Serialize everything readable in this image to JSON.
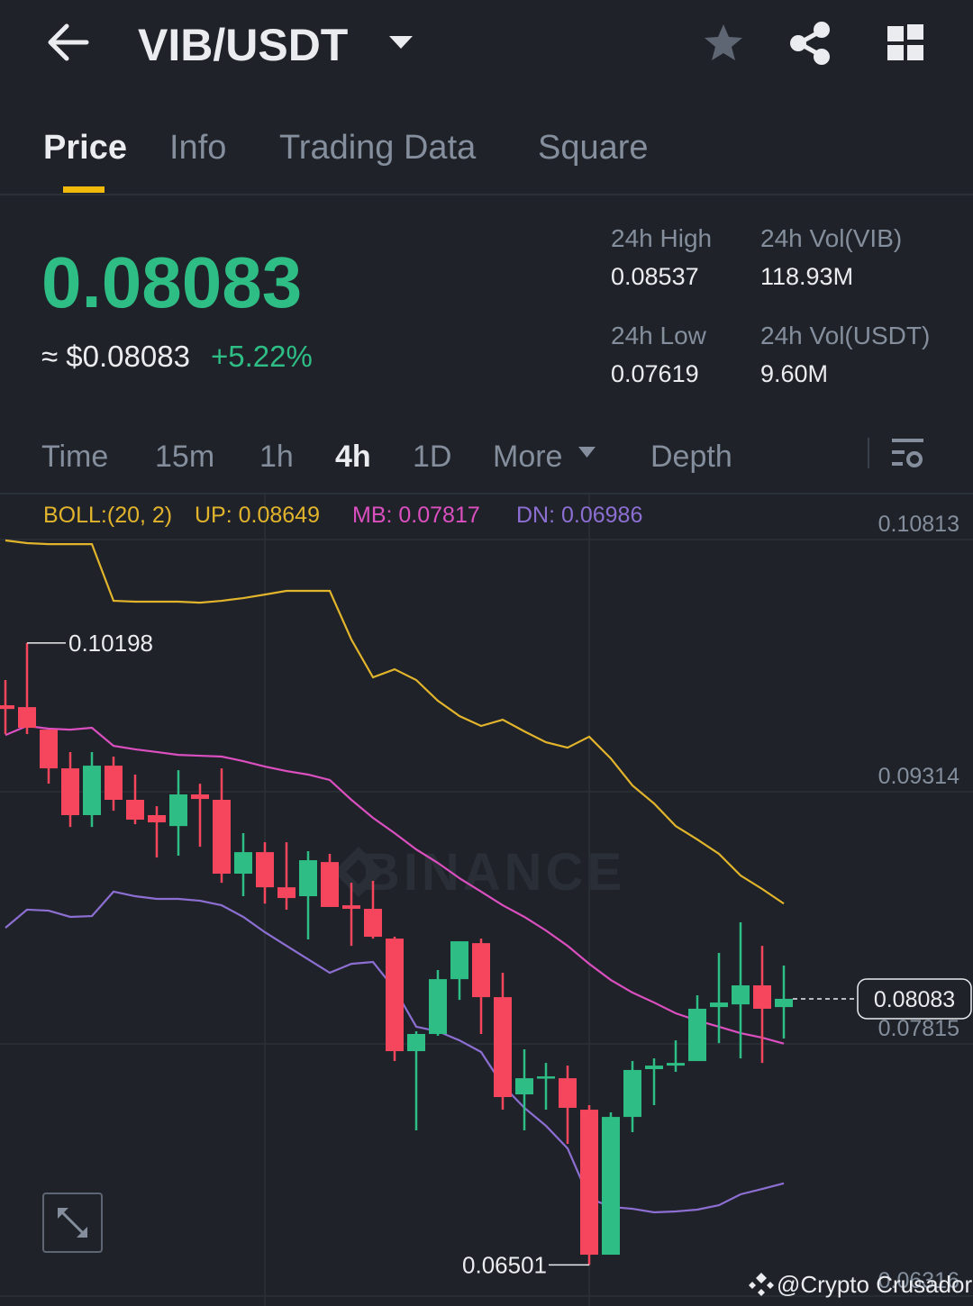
{
  "header": {
    "pair": "VIB/USDT"
  },
  "tabs": [
    "Price",
    "Info",
    "Trading Data",
    "Square"
  ],
  "active_tab": 0,
  "ticker": {
    "last_price": "0.08083",
    "approx": "≈ $0.08083",
    "change": "+5.22%",
    "stats": [
      {
        "label": "24h High",
        "value": "0.08537"
      },
      {
        "label": "24h Vol(VIB)",
        "value": "118.93M"
      },
      {
        "label": "24h Low",
        "value": "0.07619"
      },
      {
        "label": "24h Vol(USDT)",
        "value": "9.60M"
      }
    ]
  },
  "intervals": [
    "Time",
    "15m",
    "1h",
    "4h",
    "1D",
    "More",
    "Depth"
  ],
  "active_interval": 3,
  "chart_data": {
    "type": "candlestick",
    "indicator": "BOLL:(20, 2)",
    "indicator_color": "#e2b42c",
    "up_color": "#2ebd85",
    "down_color": "#f6465d",
    "open": [
      0.09828,
      0.09817,
      0.09683,
      0.09453,
      0.09175,
      0.09469,
      0.09266,
      0.09175,
      0.0911,
      0.09298,
      0.09266,
      0.08827,
      0.08955,
      0.08746,
      0.08693,
      0.08896,
      0.08639,
      0.08618,
      0.08441,
      0.07772,
      0.07874,
      0.082,
      0.08414,
      0.08093,
      0.07515,
      0.07611,
      0.07611,
      0.07424,
      0.06562,
      0.07381,
      0.07665,
      0.07686,
      0.07713,
      0.08034,
      0.0805,
      0.08163,
      0.08034
    ],
    "high": [
      0.09978,
      0.10198,
      0.09683,
      0.0955,
      0.0955,
      0.09523,
      0.09416,
      0.09228,
      0.09442,
      0.09362,
      0.09453,
      0.09068,
      0.09014,
      0.09014,
      0.08961,
      0.08945,
      0.08773,
      0.08784,
      0.08452,
      0.0789,
      0.08254,
      0.08425,
      0.08441,
      0.08238,
      0.07783,
      0.07702,
      0.07686,
      0.07451,
      0.07408,
      0.07713,
      0.07729,
      0.07836,
      0.08104,
      0.08356,
      0.08538,
      0.08398,
      0.08281
    ],
    "low": [
      0.09657,
      0.09657,
      0.09362,
      0.09105,
      0.09105,
      0.09201,
      0.09121,
      0.08923,
      0.08934,
      0.08987,
      0.08773,
      0.08693,
      0.08649,
      0.08613,
      0.08436,
      0.08629,
      0.08398,
      0.08441,
      0.07713,
      0.07301,
      0.07863,
      0.08077,
      0.07874,
      0.07424,
      0.07301,
      0.07424,
      0.07221,
      0.06501,
      0.06562,
      0.0729,
      0.07451,
      0.07649,
      0.07713,
      0.0782,
      0.07729,
      0.07702,
      0.07847
    ],
    "close": [
      0.09806,
      0.09694,
      0.09453,
      0.09175,
      0.09469,
      0.09266,
      0.09148,
      0.09132,
      0.09298,
      0.09271,
      0.08827,
      0.08955,
      0.08746,
      0.08682,
      0.08907,
      0.08629,
      0.08618,
      0.08452,
      0.07772,
      0.07874,
      0.082,
      0.08425,
      0.08093,
      0.07499,
      0.07611,
      0.07622,
      0.07435,
      0.06562,
      0.07381,
      0.0766,
      0.07686,
      0.07702,
      0.08024,
      0.08061,
      0.08163,
      0.08024,
      0.08083
    ],
    "series": [
      {
        "name": "UP: 0.08649",
        "color": "#e2b42c",
        "values": [
          0.10808,
          0.10792,
          0.10786,
          0.10786,
          0.10786,
          0.10449,
          0.10444,
          0.10444,
          0.10444,
          0.10438,
          0.10449,
          0.10465,
          0.10486,
          0.10508,
          0.10508,
          0.10508,
          0.10219,
          0.09994,
          0.10042,
          0.09978,
          0.09855,
          0.09764,
          0.09705,
          0.09742,
          0.09673,
          0.09608,
          0.09576,
          0.09641,
          0.09512,
          0.09351,
          0.09244,
          0.0911,
          0.0903,
          0.08945,
          0.08816,
          0.08736,
          0.08649
        ]
      },
      {
        "name": "MB: 0.07817",
        "color": "#dc4fc0",
        "values": [
          0.09651,
          0.09705,
          0.09689,
          0.09683,
          0.09694,
          0.09587,
          0.09566,
          0.0955,
          0.09533,
          0.09528,
          0.09523,
          0.09496,
          0.09464,
          0.09437,
          0.09416,
          0.09384,
          0.09266,
          0.09159,
          0.09068,
          0.08971,
          0.08891,
          0.088,
          0.0872,
          0.08639,
          0.0857,
          0.08489,
          0.08398,
          0.08291,
          0.08195,
          0.0812,
          0.08061,
          0.07997,
          0.07954,
          0.07917,
          0.07879,
          0.07852,
          0.07817
        ]
      },
      {
        "name": "DN: 0.06986",
        "color": "#8d6fd3",
        "values": [
          0.08505,
          0.08613,
          0.08607,
          0.0857,
          0.08575,
          0.0872,
          0.08693,
          0.08677,
          0.08677,
          0.08666,
          0.08639,
          0.0857,
          0.08479,
          0.08398,
          0.08318,
          0.08238,
          0.08291,
          0.08302,
          0.08141,
          0.07917,
          0.0789,
          0.07836,
          0.07767,
          0.07569,
          0.07435,
          0.07328,
          0.07194,
          0.06899,
          0.06846,
          0.06835,
          0.06814,
          0.06819,
          0.0683,
          0.06856,
          0.06921,
          0.06953,
          0.06986
        ]
      }
    ],
    "ylim": [
      0.06257,
      0.11081
    ],
    "yticks": [
      0.10813,
      0.09314,
      0.07815,
      0.06316
    ],
    "grid": true,
    "annotations": {
      "high": 0.10198,
      "low": 0.06501,
      "last": 0.08083
    }
  },
  "watermarks": [
    "BINANCE",
    "@Crypto Crusador"
  ]
}
